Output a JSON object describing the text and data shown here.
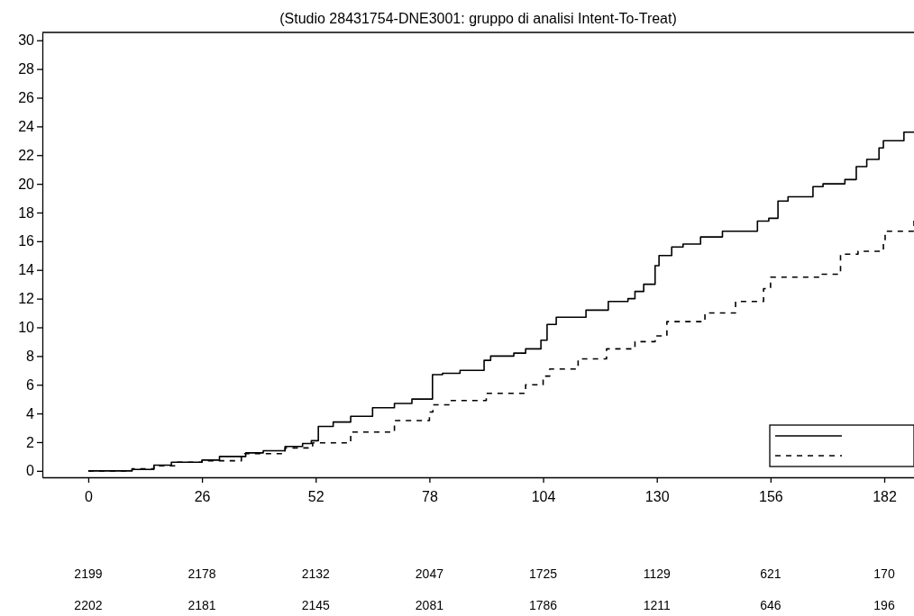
{
  "chart_data": {
    "type": "step",
    "title": "(Studio 28431754-DNE3001: gruppo di analisi Intent-To-Treat)",
    "xlim": [
      -10.5,
      188.8
    ],
    "xticks": [
      0,
      26,
      52,
      78,
      104,
      130,
      156,
      182
    ],
    "ylim": [
      -0.45,
      30.55
    ],
    "yticks": [
      0,
      2,
      4,
      6,
      8,
      10,
      12,
      14,
      16,
      18,
      20,
      22,
      24,
      26,
      28,
      30
    ],
    "grid": false,
    "series": [
      {
        "color": "#000000",
        "line_style": "solid",
        "x": [
          0,
          10,
          15,
          19,
          26,
          30,
          36,
          40,
          45,
          49,
          51,
          52.6,
          56,
          60,
          65,
          70,
          74,
          76.7,
          78.7,
          81,
          85,
          90.5,
          92,
          97.3,
          100,
          103.5,
          104.9,
          107,
          113.8,
          118.9,
          123.4,
          125,
          127,
          129.6,
          130.5,
          133.4,
          136,
          140,
          145,
          148,
          153,
          155.6,
          157.7,
          160,
          165.7,
          168,
          173,
          175.6,
          178,
          180.8,
          181.8,
          186.5,
          188.8
        ],
        "values": [
          0,
          0.1,
          0.4,
          0.6,
          0.75,
          1.0,
          1.25,
          1.4,
          1.7,
          1.9,
          2.1,
          3.1,
          3.4,
          3.8,
          4.4,
          4.7,
          5.0,
          5.0,
          6.7,
          6.8,
          7.0,
          7.7,
          8.0,
          8.2,
          8.5,
          9.1,
          10.2,
          10.7,
          11.2,
          11.8,
          12.0,
          12.5,
          13.0,
          14.3,
          15.0,
          15.6,
          15.8,
          16.3,
          16.7,
          16.7,
          17.4,
          17.6,
          18.8,
          19.1,
          19.8,
          20.0,
          20.3,
          21.2,
          21.7,
          22.5,
          23.0,
          23.6,
          23.6
        ]
      },
      {
        "color": "#000000",
        "line_style": "dashed",
        "x": [
          0,
          10,
          15,
          20,
          26,
          35,
          45,
          51.3,
          60,
          70,
          78,
          78.8,
          83,
          91,
          100,
          104,
          105.5,
          112,
          118.5,
          125,
          129.6,
          132.3,
          141,
          148,
          154.4,
          156,
          167.8,
          172,
          176,
          181.8,
          182.2,
          188,
          188.8
        ],
        "values": [
          0,
          0.15,
          0.35,
          0.6,
          0.7,
          1.2,
          1.6,
          1.95,
          2.7,
          3.5,
          4.1,
          4.6,
          4.9,
          5.4,
          6.0,
          6.6,
          7.1,
          7.8,
          8.5,
          9.0,
          9.4,
          10.4,
          11.0,
          11.8,
          12.7,
          13.5,
          13.7,
          15.1,
          15.3,
          15.9,
          16.7,
          16.7,
          17.5
        ]
      }
    ],
    "annotations": [
      "2199",
      "2178",
      "2132",
      "2047",
      "1725",
      "1129",
      "621",
      "170",
      "2202",
      "2181",
      "2145",
      "2081",
      "1786",
      "1211",
      "646",
      "196"
    ]
  }
}
